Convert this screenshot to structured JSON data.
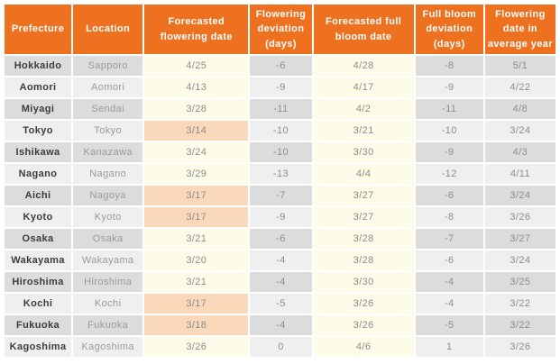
{
  "table": {
    "headers": [
      "Prefecture",
      "Location",
      "Forecasted flowering date",
      "Flowering deviation (days)",
      "Forecasted full bloom date",
      "Full bloom deviation (days)",
      "Flowering date in average year"
    ],
    "rows": [
      {
        "prefecture": "Hokkaido",
        "location": "Sapporo",
        "flowering_date": "4/25",
        "flowering_deviation": "-6",
        "full_bloom_date": "4/28",
        "full_bloom_deviation": "-8",
        "average_year_date": "5/1",
        "flowering_highlight": false
      },
      {
        "prefecture": "Aomori",
        "location": "Aomori",
        "flowering_date": "4/13",
        "flowering_deviation": "-9",
        "full_bloom_date": "4/17",
        "full_bloom_deviation": "-9",
        "average_year_date": "4/22",
        "flowering_highlight": false
      },
      {
        "prefecture": "Miyagi",
        "location": "Sendai",
        "flowering_date": "3/28",
        "flowering_deviation": "-11",
        "full_bloom_date": "4/2",
        "full_bloom_deviation": "-11",
        "average_year_date": "4/8",
        "flowering_highlight": false
      },
      {
        "prefecture": "Tokyo",
        "location": "Tokyo",
        "flowering_date": "3/14",
        "flowering_deviation": "-10",
        "full_bloom_date": "3/21",
        "full_bloom_deviation": "-10",
        "average_year_date": "3/24",
        "flowering_highlight": true
      },
      {
        "prefecture": "Ishikawa",
        "location": "Kanazawa",
        "flowering_date": "3/24",
        "flowering_deviation": "-10",
        "full_bloom_date": "3/30",
        "full_bloom_deviation": "-9",
        "average_year_date": "4/3",
        "flowering_highlight": false
      },
      {
        "prefecture": "Nagano",
        "location": "Nagano",
        "flowering_date": "3/29",
        "flowering_deviation": "-13",
        "full_bloom_date": "4/4",
        "full_bloom_deviation": "-12",
        "average_year_date": "4/11",
        "flowering_highlight": false
      },
      {
        "prefecture": "Aichi",
        "location": "Nagoya",
        "flowering_date": "3/17",
        "flowering_deviation": "-7",
        "full_bloom_date": "3/27",
        "full_bloom_deviation": "-6",
        "average_year_date": "3/24",
        "flowering_highlight": true
      },
      {
        "prefecture": "Kyoto",
        "location": "Kyoto",
        "flowering_date": "3/17",
        "flowering_deviation": "-9",
        "full_bloom_date": "3/27",
        "full_bloom_deviation": "-8",
        "average_year_date": "3/26",
        "flowering_highlight": true
      },
      {
        "prefecture": "Osaka",
        "location": "Osaka",
        "flowering_date": "3/21",
        "flowering_deviation": "-6",
        "full_bloom_date": "3/28",
        "full_bloom_deviation": "-7",
        "average_year_date": "3/27",
        "flowering_highlight": false
      },
      {
        "prefecture": "Wakayama",
        "location": "Wakayama",
        "flowering_date": "3/20",
        "flowering_deviation": "-4",
        "full_bloom_date": "3/28",
        "full_bloom_deviation": "-6",
        "average_year_date": "3/24",
        "flowering_highlight": false
      },
      {
        "prefecture": "Hiroshima",
        "location": "Hiroshima",
        "flowering_date": "3/21",
        "flowering_deviation": "-4",
        "full_bloom_date": "3/30",
        "full_bloom_deviation": "-4",
        "average_year_date": "3/25",
        "flowering_highlight": false
      },
      {
        "prefecture": "Kochi",
        "location": "Kochi",
        "flowering_date": "3/17",
        "flowering_deviation": "-5",
        "full_bloom_date": "3/26",
        "full_bloom_deviation": "-4",
        "average_year_date": "3/22",
        "flowering_highlight": true
      },
      {
        "prefecture": "Fukuoka",
        "location": "Fukuoka",
        "flowering_date": "3/18",
        "flowering_deviation": "-4",
        "full_bloom_date": "3/26",
        "full_bloom_deviation": "-5",
        "average_year_date": "3/22",
        "flowering_highlight": true
      },
      {
        "prefecture": "Kagoshima",
        "location": "Kagoshima",
        "flowering_date": "3/26",
        "flowering_deviation": "0",
        "full_bloom_date": "4/6",
        "full_bloom_deviation": "1",
        "average_year_date": "3/26",
        "flowering_highlight": false
      }
    ]
  },
  "colors": {
    "header_bg": "#ee7120",
    "header_fg": "#ffffff",
    "row_dark": "#dcdcdc",
    "row_light": "#efefef",
    "cream": "#fdfce8",
    "peach": "#fad9ba",
    "prefecture_fg": "#3c3c3c",
    "location_fg": "#9a9a9a",
    "value_fg": "#8d8d8d"
  }
}
